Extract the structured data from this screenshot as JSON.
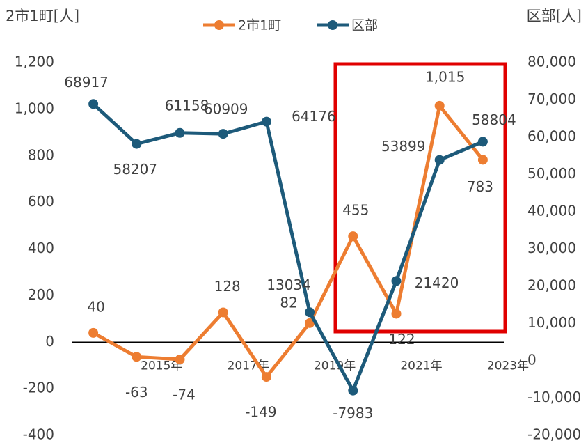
{
  "chart_data": {
    "type": "line",
    "y_label": "2市1町[人]",
    "y2_label": "区部[人]",
    "categories": [
      null,
      "2015年",
      null,
      "2017年",
      null,
      "2019年",
      null,
      "2021年",
      null,
      "2023年"
    ],
    "series": [
      {
        "name": "2市1町",
        "color": "#ed7d31",
        "values": [
          40,
          -63,
          -74,
          128,
          -149,
          82,
          455,
          122,
          1015,
          783
        ],
        "value_labels": [
          "40",
          "-63",
          "-74",
          "128",
          "-149",
          "82",
          "455",
          "122",
          "1,015",
          "783"
        ]
      },
      {
        "name": "区部",
        "color": "#1d5a7a",
        "axis": "y2",
        "values": [
          68917,
          58207,
          61158,
          60909,
          64176,
          13034,
          -7983,
          21420,
          53899,
          58804
        ]
      }
    ],
    "ylim": [
      -400,
      1200
    ],
    "yticks": [
      -400,
      -200,
      0,
      200,
      400,
      600,
      800,
      {
        "value": 1000,
        "label": "1,000"
      },
      {
        "value": 1200,
        "label": "1,200"
      }
    ],
    "y2lim": [
      -20000,
      80000
    ],
    "y2ticks": [
      {
        "value": -20000,
        "label": "-20,000"
      },
      {
        "value": -10000,
        "label": "-10,000"
      },
      0,
      {
        "value": 10000,
        "label": "10,000"
      },
      {
        "value": 20000,
        "label": "20,000"
      },
      {
        "value": 30000,
        "label": "30,000"
      },
      {
        "value": 40000,
        "label": "40,000"
      },
      {
        "value": 50000,
        "label": "50,000"
      },
      {
        "value": 60000,
        "label": "60,000"
      },
      {
        "value": 70000,
        "label": "70,000"
      },
      {
        "value": 80000,
        "label": "80,000"
      }
    ]
  }
}
